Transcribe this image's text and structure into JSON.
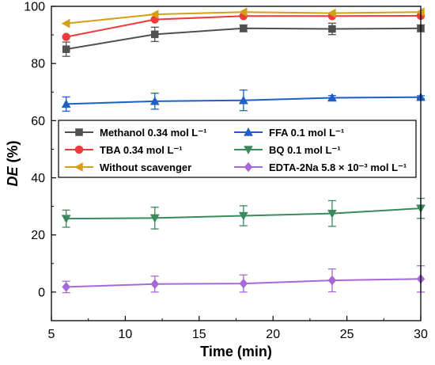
{
  "chart_data": {
    "type": "line",
    "xlabel": "Time (min)",
    "ylabel_italic": "DE",
    "ylabel_suffix": " (%)",
    "xlim": [
      5,
      30
    ],
    "ylim": [
      -10,
      100
    ],
    "xticks": [
      5,
      10,
      15,
      20,
      25,
      30
    ],
    "yticks": [
      0,
      20,
      40,
      60,
      80,
      100
    ],
    "grid": false,
    "legend_position": "center",
    "x": [
      6,
      12,
      18,
      24,
      30
    ],
    "series": [
      {
        "name": "Methanol 0.34 mol L⁻¹",
        "values": [
          85.0,
          90.2,
          92.3,
          92.1,
          92.3
        ],
        "errors": [
          2.5,
          2.5,
          1.2,
          2.0,
          1.2
        ],
        "color": "#505050",
        "marker": "square"
      },
      {
        "name": "TBA 0.34 mol L⁻¹",
        "values": [
          89.3,
          95.4,
          96.6,
          96.6,
          96.7
        ],
        "errors": [
          0.0,
          0.0,
          0.0,
          0.0,
          0.0
        ],
        "color": "#ee3a3a",
        "marker": "circle"
      },
      {
        "name": "Without scavenger",
        "values": [
          94.0,
          97.2,
          98.0,
          97.6,
          98.0
        ],
        "errors": [
          0.0,
          0.0,
          0.0,
          0.0,
          0.0
        ],
        "color": "#d4a017",
        "marker": "triangle-left"
      },
      {
        "name": "FFA 0.1 mol L⁻¹",
        "values": [
          65.8,
          66.8,
          67.1,
          68.0,
          68.2
        ],
        "errors": [
          2.5,
          2.8,
          3.6,
          0.8,
          0.5
        ],
        "color": "#1f5fc8",
        "marker": "triangle-up"
      },
      {
        "name": "BQ 0.1 mol L⁻¹",
        "values": [
          25.7,
          25.9,
          26.7,
          27.5,
          29.3
        ],
        "errors": [
          3.0,
          3.8,
          3.5,
          4.5,
          3.5
        ],
        "color": "#3a8a5a",
        "marker": "triangle-down"
      },
      {
        "name": "EDTA-2Na 5.8 × 10⁻³ mol L⁻¹",
        "values": [
          1.8,
          2.8,
          3.0,
          4.1,
          4.6
        ],
        "errors": [
          2.0,
          2.8,
          3.0,
          4.0,
          4.6
        ],
        "color": "#a56ad6",
        "marker": "diamond"
      }
    ]
  }
}
